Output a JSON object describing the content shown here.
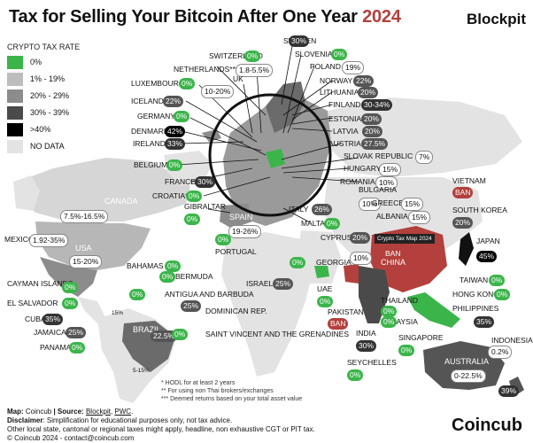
{
  "header": {
    "title": "Tax for Selling Your Bitcoin After One Year ",
    "year": "2024",
    "brand": "Blockpit"
  },
  "legend": {
    "title": "CRYPTO TAX RATE",
    "items": [
      {
        "label": "0%",
        "color": "#3bb54a"
      },
      {
        "label": "1% - 19%",
        "color": "#bdbdbd"
      },
      {
        "label": "20% - 29%",
        "color": "#8c8c8c"
      },
      {
        "label": "30% - 39%",
        "color": "#4a4a4a"
      },
      {
        "label": ">40%",
        "color": "#000000"
      },
      {
        "label": "NO DATA",
        "color": "#e3e3e3"
      }
    ]
  },
  "colors": {
    "zero": "#3bb54a",
    "ban": "#b3403c",
    "no_data": "#e3e3e3"
  },
  "map_labels": {
    "usa": "USA",
    "canada": "CANADA",
    "brazil": "BRAZIL",
    "china": "CHINA",
    "australia": "AUSTRALIA",
    "spain": "SPAIN",
    "italy": "ITALY",
    "cuba_small": "15%",
    "brazil_small": "5-15%"
  },
  "countries": [
    {
      "name": "SWITZERLAND",
      "value": "0%"
    },
    {
      "name": "SWEDEN",
      "value": "30%"
    },
    {
      "name": "SLOVENIA*",
      "value": "0%"
    },
    {
      "name": "NETHERLANDS***",
      "value": "1.8-5.5%"
    },
    {
      "name": "POLAND",
      "value": "19%"
    },
    {
      "name": "LUXEMBOURG",
      "value": "0%"
    },
    {
      "name": "UK",
      "value": "10-20%"
    },
    {
      "name": "NORWAY",
      "value": "22%"
    },
    {
      "name": "LITHUANIA",
      "value": "20%"
    },
    {
      "name": "ICELAND",
      "value": "22%"
    },
    {
      "name": "FINLAND",
      "value": "30-34%"
    },
    {
      "name": "GERMANY",
      "value": "0%"
    },
    {
      "name": "ESTONIA",
      "value": "20%"
    },
    {
      "name": "DENMARK",
      "value": "42%"
    },
    {
      "name": "LATVIA",
      "value": "20%"
    },
    {
      "name": "IRELAND",
      "value": "33%"
    },
    {
      "name": "AUSTRIA",
      "value": "27.5%"
    },
    {
      "name": "SLOVAK REPUBLIC",
      "value": "7%"
    },
    {
      "name": "BELGIUM",
      "value": "0%"
    },
    {
      "name": "HUNGARY",
      "value": "15%"
    },
    {
      "name": "FRANCE",
      "value": "30%"
    },
    {
      "name": "ROMANIA",
      "value": "10%"
    },
    {
      "name": "BULGARIA",
      "value": "10%"
    },
    {
      "name": "VIETNAM",
      "value": "BAN"
    },
    {
      "name": "CROATIA*",
      "value": "0%"
    },
    {
      "name": "GREECE",
      "value": "15%"
    },
    {
      "name": "GIBRALTAR",
      "value": "0%"
    },
    {
      "name": "ALBANIA",
      "value": "15%"
    },
    {
      "name": "SOUTH KOREA",
      "value": "20%"
    },
    {
      "name": "SPAIN",
      "value": "19-26%"
    },
    {
      "name": "ITALY",
      "value": "26%"
    },
    {
      "name": "MALTA",
      "value": "0%"
    },
    {
      "name": "USA",
      "value": "15-20%"
    },
    {
      "name": "CANADA",
      "value": "7.5%-16.5%"
    },
    {
      "name": "MEXICO",
      "value": "1.92-35%"
    },
    {
      "name": "PORTUGAL",
      "value": "0%"
    },
    {
      "name": "CYPRUS",
      "value": "20%"
    },
    {
      "name": "KAZAKHSTAN",
      "value": "10%"
    },
    {
      "name": "JAPAN",
      "value": "45%"
    },
    {
      "name": "GEORGIA",
      "value": "0%"
    },
    {
      "name": "BAHAMAS",
      "value": "0%"
    },
    {
      "name": "BERMUDA",
      "value": "0%"
    },
    {
      "name": "CHINA",
      "value": "BAN"
    },
    {
      "name": "CAYMAN ISLANDS",
      "value": "0%"
    },
    {
      "name": "ISRAEL",
      "value": "25%"
    },
    {
      "name": "UAE",
      "value": "0%"
    },
    {
      "name": "TAIWAN",
      "value": "0%"
    },
    {
      "name": "EL SALVADOR",
      "value": "0%"
    },
    {
      "name": "ANTIGUA AND BARBUDA",
      "value": "0%"
    },
    {
      "name": "HONG KONG",
      "value": "0%"
    },
    {
      "name": "CUBA",
      "value": "35%"
    },
    {
      "name": "DOMINICAN REP.",
      "value": "25%"
    },
    {
      "name": "PAKISTAN",
      "value": "BAN"
    },
    {
      "name": "THAILAND",
      "value": "0%"
    },
    {
      "name": "PHILIPPINES",
      "value": "35%"
    },
    {
      "name": "JAMAICA",
      "value": "25%"
    },
    {
      "name": "BRAZIL",
      "value": "22.5%"
    },
    {
      "name": "SAINT VINCENT AND THE GRENADINES",
      "value": "0%"
    },
    {
      "name": "MALAYSIA",
      "value": "0%"
    },
    {
      "name": "INDIA",
      "value": "30%"
    },
    {
      "name": "SINGAPORE",
      "value": "0%"
    },
    {
      "name": "INDONESIA",
      "value": "0.2%"
    },
    {
      "name": "PANAMA",
      "value": "0%"
    },
    {
      "name": "SEYCHELLES",
      "value": "0%"
    },
    {
      "name": "AUSTRALIA",
      "value": "0-22.5%"
    },
    {
      "name": "NEW ZEALAND",
      "value": "39%"
    }
  ],
  "inset_label": "Crypto Tax Map 2024",
  "notes": [
    "* HODL for at least 2 years",
    "** For using non Thai brokers/exchanges",
    "*** Deemed returns based on your total asset value"
  ],
  "footer": {
    "map_prefix": "Map: ",
    "map_value": "Coincub",
    "source_prefix": " | Source: ",
    "source_1": "Blockpit",
    "source_sep": ", ",
    "source_2": "PWC",
    "source_end": ".",
    "disclaimer_label": "Disclaimer",
    "disclaimer": ": Simplification for educational purposes only, not tax advice.",
    "disclaimer_2": "Other local state, cantonal or regional taxes might apply, headline, non exhaustive CGT or PIT tax.",
    "copyright": "© Coincub 2024 - contact@coincub.com"
  },
  "footer_brand": "Coincub"
}
